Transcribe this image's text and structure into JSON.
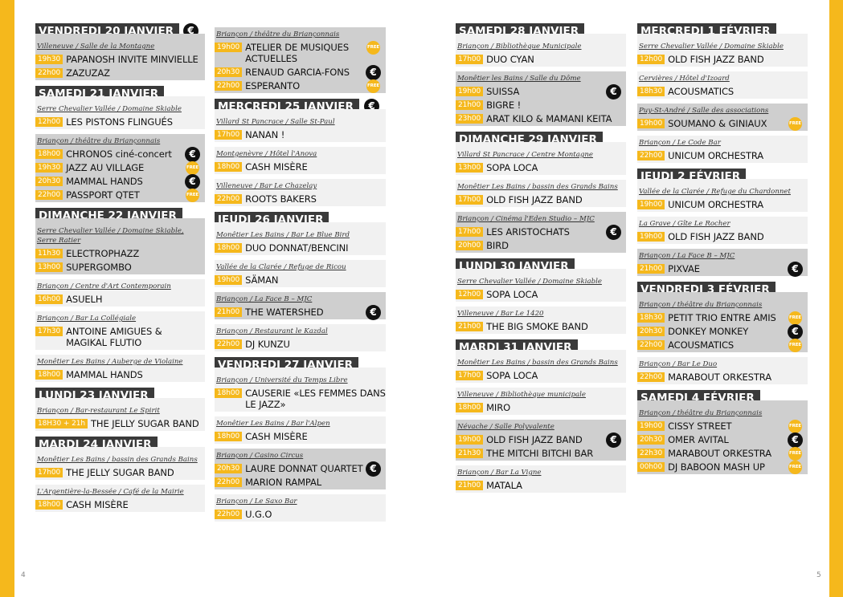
{
  "pages": {
    "left": "4",
    "right": "5"
  },
  "icons": {
    "paid": "€",
    "free": "FREE"
  },
  "columns": [
    {
      "items": [
        {
          "type": "day",
          "label": "VENDREDI 20 JANVIER",
          "badge": "euro"
        },
        {
          "type": "venue",
          "style": "gray",
          "venue": "Villeneuve / Salle de la Montagne",
          "events": [
            {
              "time": "19h30",
              "name": "PAPANOSH INVITE MINVIELLE"
            },
            {
              "time": "22h00",
              "name": "ZAZUZAZ"
            }
          ],
          "attach": true
        },
        {
          "type": "day",
          "label": "SAMEDI 21 JANVIER"
        },
        {
          "type": "venue",
          "style": "light",
          "venue": "Serre Chevalier Vallée / Domaine Skiable",
          "events": [
            {
              "time": "12h00",
              "name": "LES PISTONS FLINGUÉS"
            }
          ],
          "attach": true
        },
        {
          "type": "venue",
          "style": "gray",
          "venue": "Briançon / théâtre du Briançonnais",
          "events": [
            {
              "time": "18h00",
              "name": "CHRONOS ciné-concert",
              "badge": "euro"
            },
            {
              "time": "19h30",
              "name": "JAZZ AU VILLAGE",
              "badge": "free"
            },
            {
              "time": "20h30",
              "name": "MAMMAL HANDS",
              "badge": "euro"
            },
            {
              "time": "22h00",
              "name": "PASSPORT QTET",
              "badge": "free"
            }
          ]
        },
        {
          "type": "day",
          "label": "DIMANCHE 22 JANVIER"
        },
        {
          "type": "venue",
          "style": "gray",
          "venue": "Serre Chevalier Vallée / Domaine Skiable, Serre Ratier",
          "events": [
            {
              "time": "11h30",
              "name": "ELECTROPHAZZ"
            },
            {
              "time": "13h00",
              "name": "SUPERGOMBO"
            }
          ],
          "attach": true
        },
        {
          "type": "venue",
          "style": "light",
          "venue": "Briançon  / Centre d'Art Contemporain",
          "events": [
            {
              "time": "16h00",
              "name": "ASUELH"
            }
          ]
        },
        {
          "type": "venue",
          "style": "light",
          "venue": "Briançon  / Bar La Collégiale",
          "events": [
            {
              "time": "17h30",
              "name": "ANTOINE AMIGUES & MAGIKAL FLUTIO"
            }
          ]
        },
        {
          "type": "venue",
          "style": "light",
          "venue": "Monêtier Les Bains / Auberge de Violaine",
          "events": [
            {
              "time": "18h00",
              "name": "MAMMAL HANDS"
            }
          ]
        },
        {
          "type": "day",
          "label": "LUNDI 23 JANVIER"
        },
        {
          "type": "venue",
          "style": "light",
          "venue": "Briançon / Bar-restaurant Le Spirit",
          "events": [
            {
              "time": "18H30 + 21h",
              "name": "THE JELLY SUGAR BAND"
            }
          ],
          "attach": true
        },
        {
          "type": "day",
          "label": "MARDI 24 JANVIER"
        },
        {
          "type": "venue",
          "style": "light",
          "venue": "Monêtier Les Bains / bassin des Grands Bains",
          "events": [
            {
              "time": "17h00",
              "name": "THE JELLY SUGAR BAND"
            }
          ],
          "attach": true
        },
        {
          "type": "venue",
          "style": "light",
          "venue": "L'Argentière-la-Bessée / Café de la Mairie",
          "events": [
            {
              "time": "18h00",
              "name": "CASH MISÈRE"
            }
          ]
        }
      ]
    },
    {
      "items": [
        {
          "type": "venue",
          "style": "gray",
          "venue": "Briançon / théâtre du Briançonnais",
          "events": [
            {
              "time": "19h00",
              "name": "ATELIER DE MUSIQUES ACTUELLES",
              "badge": "free"
            },
            {
              "time": "20h30",
              "name": "RENAUD GARCIA-FONS",
              "badge": "euro"
            },
            {
              "time": "22h00",
              "name": "ESPERANTO",
              "badge": "free"
            }
          ]
        },
        {
          "type": "day",
          "label": "MERCREDI 25 JANVIER",
          "badge": "euro"
        },
        {
          "type": "venue",
          "style": "light",
          "venue": "Villard St Pancrace / Salle St-Paul",
          "events": [
            {
              "time": "17h00",
              "name": "NANAN !"
            }
          ],
          "attach": true
        },
        {
          "type": "venue",
          "style": "light",
          "venue": "Montgenèvre / Hôtel l'Anova",
          "events": [
            {
              "time": "18h00",
              "name": "CASH MISÈRE"
            }
          ]
        },
        {
          "type": "venue",
          "style": "light",
          "venue": "Villeneuve / Bar Le Chazelay",
          "events": [
            {
              "time": "22h00",
              "name": "ROOTS BAKERS"
            }
          ]
        },
        {
          "type": "day",
          "label": "JEUDI 26 JANVIER"
        },
        {
          "type": "venue",
          "style": "light",
          "venue": "Monêtier Les Bains / Bar Le Blue Bird",
          "events": [
            {
              "time": "18h00",
              "name": "DUO DONNAT/BENCINI"
            }
          ],
          "attach": true
        },
        {
          "type": "venue",
          "style": "light",
          "venue": "Vallée de la Clarée / Refuge de Ricou",
          "events": [
            {
              "time": "19h00",
              "name": "SÄMAN"
            }
          ]
        },
        {
          "type": "venue",
          "style": "gray",
          "venue": "Briançon / La Face B – MJC",
          "events": [
            {
              "time": "21h00",
              "name": "THE WATERSHED",
              "badge": "euro"
            }
          ]
        },
        {
          "type": "venue",
          "style": "light",
          "venue": "Briançon / Restaurant le Kazdal",
          "events": [
            {
              "time": "22h00",
              "name": "DJ KUNZU"
            }
          ]
        },
        {
          "type": "day",
          "label": "VENDREDI 27 JANVIER"
        },
        {
          "type": "venue",
          "style": "light",
          "venue": "Briançon / Université du Temps Libre",
          "events": [
            {
              "time": "18h00",
              "name": "CAUSERIE «LES FEMMES DANS LE JAZZ»"
            }
          ],
          "attach": true
        },
        {
          "type": "venue",
          "style": "light",
          "venue": "Monêtier Les Bains / Bar l'Alpen",
          "events": [
            {
              "time": "18h00",
              "name": "CASH MISÈRE"
            }
          ]
        },
        {
          "type": "venue",
          "style": "gray",
          "venue": "Briançon / Casino Circus",
          "events": [
            {
              "time": "20h30",
              "name": "LAURE DONNAT QUARTET",
              "badge": "euro"
            },
            {
              "time": "22h00",
              "name": "MARION RAMPAL"
            }
          ]
        },
        {
          "type": "venue",
          "style": "light",
          "venue": "Briançon / Le Saxo Bar",
          "events": [
            {
              "time": "22h00",
              "name": "U.G.O"
            }
          ]
        }
      ]
    },
    {
      "items": [
        {
          "type": "day",
          "label": "SAMEDI 28 JANVIER"
        },
        {
          "type": "venue",
          "style": "light",
          "venue": "Briançon / Bibliothèque Municipale",
          "events": [
            {
              "time": "17h00",
              "name": "DUO CYAN"
            }
          ],
          "attach": true
        },
        {
          "type": "venue",
          "style": "gray",
          "venue": "Monêtier les Bains / Salle du Dôme",
          "events": [
            {
              "time": "19h00",
              "name": "SUISSA",
              "badge": "euro"
            },
            {
              "time": "21h00",
              "name": "BIGRE !"
            },
            {
              "time": "23h00",
              "name": "ARAT KILO & MAMANI KEITA"
            }
          ]
        },
        {
          "type": "day",
          "label": "DIMANCHE 29 JANVIER"
        },
        {
          "type": "venue",
          "style": "light",
          "venue": "Villard St Pancrace / Centre Montagne",
          "events": [
            {
              "time": "13h00",
              "name": "SOPA LOCA"
            }
          ],
          "attach": true
        },
        {
          "type": "venue",
          "style": "light",
          "venue": "Monêtier Les Bains / bassin des Grands Bains",
          "events": [
            {
              "time": "17h00",
              "name": "OLD FISH JAZZ BAND"
            }
          ]
        },
        {
          "type": "venue",
          "style": "gray",
          "venue": "Briançon / Cinéma l'Eden Studio – MJC",
          "events": [
            {
              "time": "17h00",
              "name": "LES ARISTOCHATS",
              "badge": "euro"
            },
            {
              "time": "20h00",
              "name": "BIRD"
            }
          ]
        },
        {
          "type": "day",
          "label": "LUNDI 30 JANVIER"
        },
        {
          "type": "venue",
          "style": "light",
          "venue": "Serre Chevalier Vallée / Domaine Skiable",
          "events": [
            {
              "time": "12h00",
              "name": "SOPA LOCA"
            }
          ],
          "attach": true
        },
        {
          "type": "venue",
          "style": "light",
          "venue": "Villeneuve / Bar Le 1420",
          "events": [
            {
              "time": "21h00",
              "name": "THE BIG SMOKE BAND"
            }
          ]
        },
        {
          "type": "day",
          "label": "MARDI 31 JANVIER"
        },
        {
          "type": "venue",
          "style": "light",
          "venue": "Monêtier Les Bains / bassin des Grands Bains",
          "events": [
            {
              "time": "17h00",
              "name": "SOPA LOCA"
            }
          ],
          "attach": true
        },
        {
          "type": "venue",
          "style": "light",
          "venue": "Villeneuve / Bibliothèque municipale",
          "events": [
            {
              "time": "18h00",
              "name": "MIRO"
            }
          ]
        },
        {
          "type": "venue",
          "style": "gray",
          "venue": "Névache / Salle Polyvalente",
          "events": [
            {
              "time": "19h00",
              "name": "OLD FISH JAZZ BAND",
              "badge": "euro"
            },
            {
              "time": "21h30",
              "name": "THE MITCHI BITCHI BAR"
            }
          ]
        },
        {
          "type": "venue",
          "style": "light",
          "venue": "Briançon / Bar La Vigne",
          "events": [
            {
              "time": "21h00",
              "name": "MATALA"
            }
          ]
        }
      ]
    },
    {
      "items": [
        {
          "type": "day",
          "label": "MERCREDI 1 FÉVRIER"
        },
        {
          "type": "venue",
          "style": "light",
          "venue": "Serre Chevalier Vallée / Domaine Skiable",
          "events": [
            {
              "time": "12h00",
              "name": "OLD FISH JAZZ BAND"
            }
          ],
          "attach": true
        },
        {
          "type": "venue",
          "style": "light",
          "venue": "Cervières / Hôtel d'Izoard",
          "events": [
            {
              "time": "18h30",
              "name": "ACOUSMATICS"
            }
          ]
        },
        {
          "type": "venue",
          "style": "gray",
          "venue": "Puy-St-André / Salle des associations",
          "events": [
            {
              "time": "19h00",
              "name": "SOUMANO & GINIAUX",
              "badge": "free"
            }
          ]
        },
        {
          "type": "venue",
          "style": "light",
          "venue": "Briançon / Le Code Bar",
          "events": [
            {
              "time": "22h00",
              "name": "UNICUM ORCHESTRA"
            }
          ]
        },
        {
          "type": "day",
          "label": "JEUDI 2 FÉVRIER"
        },
        {
          "type": "venue",
          "style": "light",
          "venue": "Vallée de la Clarée / Refuge du Chardonnet",
          "events": [
            {
              "time": "19h00",
              "name": "UNICUM ORCHESTRA"
            }
          ],
          "attach": true
        },
        {
          "type": "venue",
          "style": "light",
          "venue": "La Grave / Gîte Le Rocher",
          "events": [
            {
              "time": "19h00",
              "name": "OLD FISH JAZZ BAND"
            }
          ]
        },
        {
          "type": "venue",
          "style": "gray",
          "venue": "Briançon / La Face B – MJC",
          "events": [
            {
              "time": "21h00",
              "name": "PIXVAE",
              "badge": "euro"
            }
          ]
        },
        {
          "type": "day",
          "label": "VENDREDI 3 FÉVRIER"
        },
        {
          "type": "venue",
          "style": "gray",
          "venue": "Briançon / théâtre du Briançonnais",
          "events": [
            {
              "time": "18h30",
              "name": "PETIT TRIO ENTRE AMIS",
              "badge": "free"
            },
            {
              "time": "20h30",
              "name": "DONKEY MONKEY",
              "badge": "euro"
            },
            {
              "time": "22h00",
              "name": "ACOUSMATICS",
              "badge": "free"
            }
          ],
          "attach": true
        },
        {
          "type": "venue",
          "style": "light",
          "venue": "Briançon / Bar Le Duo",
          "events": [
            {
              "time": "22h00",
              "name": "MARABOUT ORKESTRA"
            }
          ]
        },
        {
          "type": "day",
          "label": "SAMEDI 4 FÉVRIER"
        },
        {
          "type": "venue",
          "style": "gray",
          "venue": "Briançon / théâtre du Briançonnais",
          "events": [
            {
              "time": "19h00",
              "name": "CISSY STREET",
              "badge": "free"
            },
            {
              "time": "20h30",
              "name": "OMER AVITAL",
              "badge": "euro"
            },
            {
              "time": "22h30",
              "name": "MARABOUT ORKESTRA",
              "badge": "free"
            },
            {
              "time": "00h00",
              "name": "DJ BABOON MASH UP",
              "badge": "free"
            }
          ],
          "attach": true
        }
      ]
    }
  ]
}
